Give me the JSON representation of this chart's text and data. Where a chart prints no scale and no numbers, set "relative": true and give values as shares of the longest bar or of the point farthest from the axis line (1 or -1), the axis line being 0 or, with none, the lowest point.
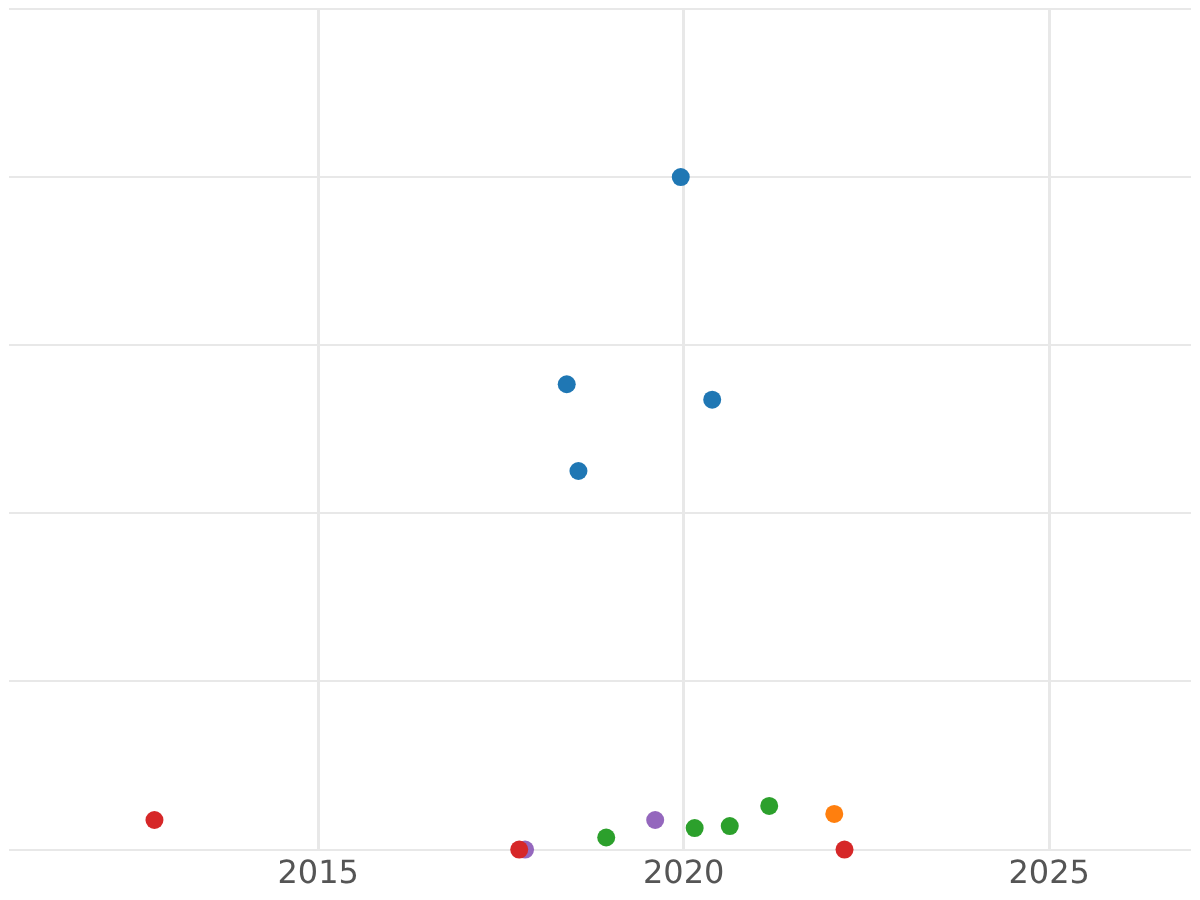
{
  "chart_data": {
    "type": "scatter",
    "relative": true,
    "grid": true,
    "legend": false,
    "marker": "circle",
    "xlim": [
      2010.77,
      2026.94
    ],
    "xticks": [
      2015,
      2020,
      2025
    ],
    "series": [
      {
        "color": "#1f77b4",
        "x": [
          2019.96,
          2018.4,
          2020.39,
          2018.56
        ],
        "values": [
          1,
          0.692,
          0.669,
          0.563
        ]
      },
      {
        "color": "#d62728",
        "x": [
          2012.76,
          2017.75,
          2022.2
        ],
        "values": [
          0.044,
          0,
          0
        ]
      },
      {
        "color": "#9467bd",
        "x": [
          2017.83,
          2019.61
        ],
        "values": [
          0,
          0.044
        ]
      },
      {
        "color": "#2ca02c",
        "x": [
          2018.94,
          2020.15,
          2020.63,
          2021.17
        ],
        "values": [
          0.018,
          0.032,
          0.035,
          0.065
        ]
      },
      {
        "color": "#ff7f0e",
        "x": [
          2022.06
        ],
        "values": [
          0.053
        ]
      }
    ]
  }
}
